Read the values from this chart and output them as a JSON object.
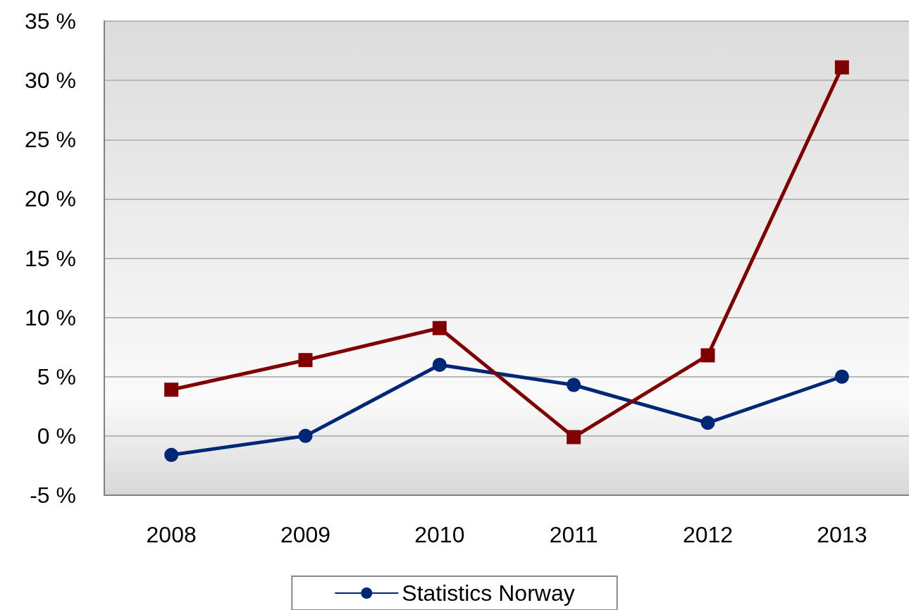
{
  "chart_data": {
    "type": "line",
    "categories": [
      "2008",
      "2009",
      "2010",
      "2011",
      "2012",
      "2013"
    ],
    "series": [
      {
        "name": "Statistics Norway",
        "color": "#002776",
        "marker": "circle",
        "values": [
          -1.6,
          0.0,
          6.0,
          4.3,
          1.1,
          5.0
        ]
      },
      {
        "color": "#800000",
        "marker": "square",
        "values": [
          3.9,
          6.4,
          9.1,
          -0.1,
          6.8,
          31.1
        ]
      }
    ],
    "ylim": [
      -5,
      35
    ],
    "yticks": [
      {
        "value": -5,
        "label": "-5 %"
      },
      {
        "value": 0,
        "label": "0 %"
      },
      {
        "value": 5,
        "label": "5 %"
      },
      {
        "value": 10,
        "label": "10 %"
      },
      {
        "value": 15,
        "label": "15 %"
      },
      {
        "value": 20,
        "label": "20 %"
      },
      {
        "value": 25,
        "label": "25 %"
      },
      {
        "value": 30,
        "label": "30 %"
      },
      {
        "value": 35,
        "label": "35 %"
      }
    ],
    "grid": "y",
    "legend": "bottom",
    "line_style": "solid"
  }
}
